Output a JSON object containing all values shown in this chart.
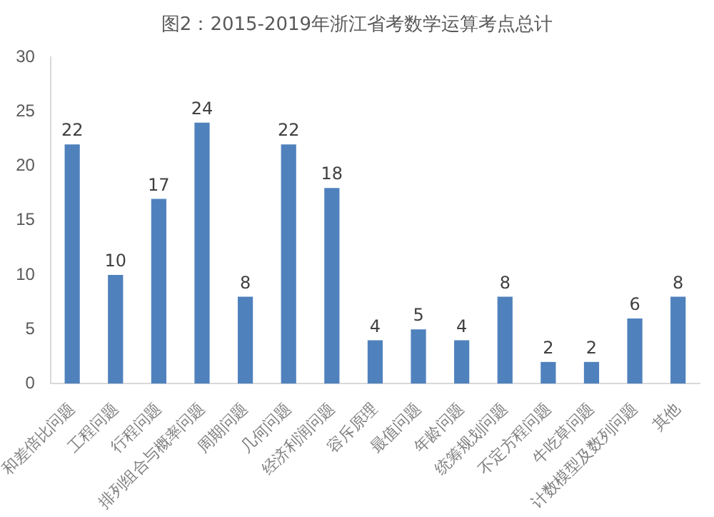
{
  "chart_data": {
    "type": "bar",
    "title": "图2：2015-2019年浙江省考数学运算考点总计",
    "categories": [
      "和差倍比问题",
      "工程问题",
      "行程问题",
      "排列组合与概率问题",
      "周期问题",
      "几何问题",
      "经济利润问题",
      "容斥原理",
      "最值问题",
      "年龄问题",
      "统筹规划问题",
      "不定方程问题",
      "牛吃草问题",
      "计数模型及数列问题",
      "其他"
    ],
    "values": [
      22,
      10,
      17,
      24,
      8,
      22,
      18,
      4,
      5,
      4,
      8,
      2,
      2,
      6,
      8
    ],
    "color": "#4f81bd",
    "ylim": [
      0,
      30
    ],
    "yticks": [
      0,
      5,
      10,
      15,
      20,
      25,
      30
    ],
    "grid": false,
    "data_labels": true
  }
}
